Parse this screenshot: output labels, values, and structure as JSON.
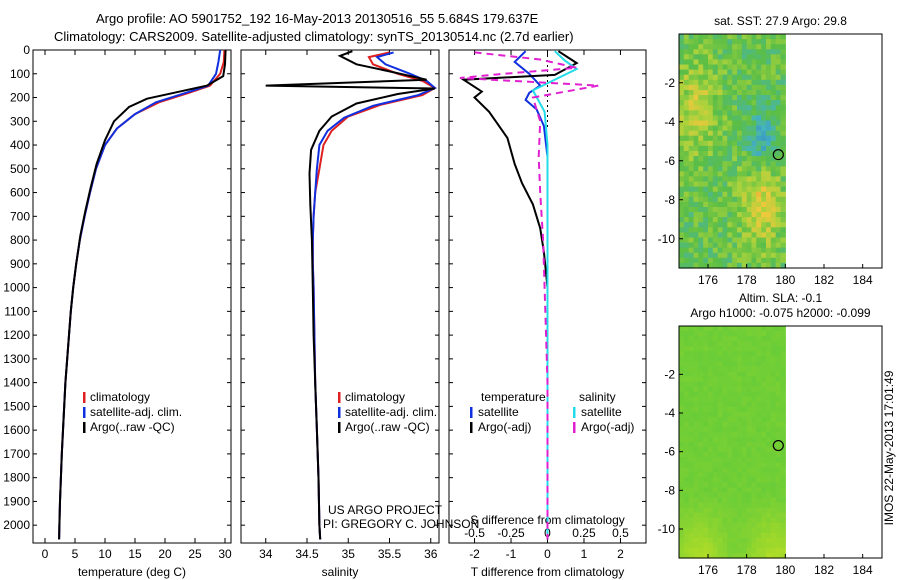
{
  "header": {
    "line1": "Argo profile: AO 5901752_192 16-May-2013 20130516_55 5.684S 179.637E",
    "line2": "Climatology: CARS2009. Satellite-adjusted climatology: synTS_20130514.nc (2.7d earlier)"
  },
  "credits": {
    "project": "US ARGO PROJECT",
    "pi": "PI: GREGORY C. JOHNSON"
  },
  "side_label": "IMOS 22-May-2013 17:01:49",
  "colors": {
    "climatology": "#e02020",
    "satellite": "#1030e0",
    "argo": "#000000",
    "sal_sat": "#22dde8",
    "sal_argo": "#e020d0"
  },
  "chart_data": [
    {
      "type": "line",
      "xlabel": "temperature (deg C)",
      "xlim": [
        -2,
        31
      ],
      "xticks": [
        0,
        5,
        10,
        15,
        20,
        25,
        30
      ],
      "ylim": [
        2075,
        0
      ],
      "yticks": [
        0,
        100,
        200,
        300,
        400,
        500,
        600,
        700,
        800,
        900,
        1000,
        1100,
        1200,
        1300,
        1400,
        1500,
        1600,
        1700,
        1800,
        1900,
        2000
      ],
      "legend": [
        "climatology",
        "satellite-adj. clim.",
        "Argo(..raw -QC)"
      ],
      "series": [
        {
          "name": "climatology",
          "color": "#e02020",
          "points": [
            [
              29.9,
              0
            ],
            [
              29.8,
              50
            ],
            [
              29.2,
              100
            ],
            [
              27.5,
              150
            ],
            [
              24,
              180
            ],
            [
              19,
              220
            ],
            [
              15,
              270
            ],
            [
              12,
              330
            ],
            [
              10,
              400
            ],
            [
              8.5,
              500
            ],
            [
              7.5,
              600
            ],
            [
              6.6,
              700
            ],
            [
              5.8,
              800
            ],
            [
              5.2,
              900
            ],
            [
              4.7,
              1000
            ],
            [
              4.3,
              1100
            ],
            [
              4,
              1200
            ],
            [
              3.7,
              1300
            ],
            [
              3.4,
              1400
            ],
            [
              3.2,
              1500
            ],
            [
              3,
              1600
            ],
            [
              2.8,
              1700
            ],
            [
              2.65,
              1800
            ],
            [
              2.5,
              1900
            ],
            [
              2.4,
              2000
            ],
            [
              2.35,
              2060
            ]
          ]
        },
        {
          "name": "satellite-adj. clim.",
          "color": "#1030e0",
          "points": [
            [
              29.2,
              0
            ],
            [
              28.9,
              50
            ],
            [
              28.5,
              100
            ],
            [
              27.2,
              150
            ],
            [
              23.5,
              180
            ],
            [
              18.5,
              220
            ],
            [
              15,
              270
            ],
            [
              12,
              330
            ],
            [
              10,
              400
            ],
            [
              8.5,
              500
            ],
            [
              7.5,
              600
            ],
            [
              6.6,
              700
            ],
            [
              5.8,
              800
            ],
            [
              5.2,
              900
            ],
            [
              4.7,
              1000
            ],
            [
              4.3,
              1100
            ],
            [
              4,
              1200
            ],
            [
              3.7,
              1300
            ],
            [
              3.4,
              1400
            ],
            [
              3.2,
              1500
            ],
            [
              3,
              1600
            ],
            [
              2.8,
              1700
            ],
            [
              2.65,
              1800
            ],
            [
              2.5,
              1900
            ],
            [
              2.4,
              2000
            ],
            [
              2.35,
              2060
            ]
          ]
        },
        {
          "name": "Argo(..raw -QC)",
          "color": "#000000",
          "points": [
            [
              30.1,
              0
            ],
            [
              30,
              60
            ],
            [
              29.7,
              110
            ],
            [
              27,
              150
            ],
            [
              21.5,
              180
            ],
            [
              17,
              205
            ],
            [
              14,
              240
            ],
            [
              11.5,
              300
            ],
            [
              10,
              380
            ],
            [
              8.6,
              480
            ],
            [
              7.6,
              580
            ],
            [
              6.7,
              680
            ],
            [
              5.9,
              780
            ],
            [
              5.2,
              900
            ],
            [
              4.7,
              1000
            ],
            [
              4.3,
              1100
            ],
            [
              4,
              1200
            ],
            [
              3.7,
              1300
            ],
            [
              3.4,
              1400
            ],
            [
              3.2,
              1500
            ],
            [
              3,
              1600
            ],
            [
              2.8,
              1700
            ],
            [
              2.65,
              1800
            ],
            [
              2.5,
              1900
            ],
            [
              2.4,
              2000
            ],
            [
              2.35,
              2060
            ]
          ]
        }
      ]
    },
    {
      "type": "line",
      "xlabel": "salinity",
      "xlim": [
        33.7,
        36.1
      ],
      "xticks": [
        34,
        34.5,
        35,
        35.5,
        36
      ],
      "ylim": [
        2075,
        0
      ],
      "legend": [
        "climatology",
        "satellite-adj. clim.",
        "Argo(..raw -QC)"
      ],
      "series": [
        {
          "name": "climatology",
          "color": "#e02020",
          "points": [
            [
              35.5,
              10
            ],
            [
              35.25,
              30
            ],
            [
              35.3,
              60
            ],
            [
              35.6,
              100
            ],
            [
              35.9,
              130
            ],
            [
              36.05,
              160
            ],
            [
              35.9,
              190
            ],
            [
              35.4,
              230
            ],
            [
              35,
              280
            ],
            [
              34.8,
              340
            ],
            [
              34.7,
              400
            ],
            [
              34.65,
              500
            ],
            [
              34.6,
              600
            ],
            [
              34.58,
              700
            ],
            [
              34.57,
              800
            ],
            [
              34.57,
              900
            ],
            [
              34.58,
              1000
            ],
            [
              34.59,
              1200
            ],
            [
              34.6,
              1400
            ],
            [
              34.62,
              1600
            ],
            [
              34.64,
              1800
            ],
            [
              34.65,
              2000
            ],
            [
              34.66,
              2060
            ]
          ]
        },
        {
          "name": "satellite-adj. clim.",
          "color": "#1030e0",
          "points": [
            [
              35.55,
              10
            ],
            [
              35.35,
              30
            ],
            [
              35.45,
              60
            ],
            [
              35.75,
              100
            ],
            [
              35.95,
              130
            ],
            [
              36.05,
              160
            ],
            [
              35.85,
              190
            ],
            [
              35.3,
              235
            ],
            [
              34.95,
              285
            ],
            [
              34.75,
              340
            ],
            [
              34.65,
              400
            ],
            [
              34.62,
              500
            ],
            [
              34.6,
              600
            ],
            [
              34.58,
              700
            ],
            [
              34.57,
              800
            ],
            [
              34.57,
              900
            ],
            [
              34.58,
              1000
            ],
            [
              34.59,
              1200
            ],
            [
              34.6,
              1400
            ],
            [
              34.62,
              1600
            ],
            [
              34.64,
              1800
            ],
            [
              34.65,
              2000
            ],
            [
              34.66,
              2060
            ]
          ]
        },
        {
          "name": "Argo(..raw -QC)",
          "color": "#000000",
          "points": [
            [
              35.05,
              5
            ],
            [
              34.9,
              25
            ],
            [
              35.1,
              60
            ],
            [
              35.5,
              90
            ],
            [
              35.95,
              125
            ],
            [
              34.0,
              150
            ],
            [
              36.05,
              162
            ],
            [
              35.6,
              185
            ],
            [
              35.1,
              225
            ],
            [
              34.8,
              280
            ],
            [
              34.65,
              340
            ],
            [
              34.55,
              420
            ],
            [
              34.53,
              520
            ],
            [
              34.54,
              650
            ],
            [
              34.56,
              800
            ],
            [
              34.57,
              1000
            ],
            [
              34.58,
              1200
            ],
            [
              34.6,
              1400
            ],
            [
              34.62,
              1600
            ],
            [
              34.64,
              1800
            ],
            [
              34.65,
              2000
            ],
            [
              34.66,
              2060
            ]
          ]
        }
      ]
    },
    {
      "type": "line",
      "xlabel": "T difference from climatology",
      "x2label": "S difference from climatology",
      "xlim": [
        -2.7,
        2.7
      ],
      "xticks": [
        -2,
        -1,
        0,
        1,
        2
      ],
      "x2lim": [
        -0.675,
        0.675
      ],
      "x2ticks": [
        -0.5,
        -0.25,
        0,
        0.25,
        0.5
      ],
      "ylim": [
        2075,
        0
      ],
      "legend": [
        "temperature",
        "satellite",
        "Argo(-adj)",
        "salinity",
        "satellite",
        "Argo(-adj)"
      ],
      "series": [
        {
          "name": "satellite",
          "axis": "T",
          "color": "#1030e0",
          "points": [
            [
              -0.6,
              5
            ],
            [
              -0.9,
              50
            ],
            [
              -0.5,
              100
            ],
            [
              -0.2,
              150
            ],
            [
              -0.5,
              180
            ],
            [
              -0.6,
              210
            ],
            [
              -0.3,
              250
            ],
            [
              -0.1,
              320
            ],
            [
              0,
              450
            ],
            [
              0,
              700
            ],
            [
              0,
              1000
            ],
            [
              0,
              2060
            ]
          ]
        },
        {
          "name": "Argo(-adj)",
          "axis": "T",
          "color": "#000000",
          "points": [
            [
              0.3,
              5
            ],
            [
              0.8,
              55
            ],
            [
              0.2,
              105
            ],
            [
              -2.3,
              125
            ],
            [
              -1.8,
              175
            ],
            [
              -2.0,
              200
            ],
            [
              -1.6,
              260
            ],
            [
              -1.1,
              370
            ],
            [
              -0.9,
              480
            ],
            [
              -0.7,
              560
            ],
            [
              -0.4,
              650
            ],
            [
              -0.2,
              750
            ],
            [
              -0.1,
              850
            ],
            [
              0,
              1000
            ],
            [
              0,
              1400
            ],
            [
              0,
              2060
            ]
          ]
        },
        {
          "name": "satellite",
          "axis": "S",
          "color": "#22dde8",
          "points": [
            [
              0.05,
              5
            ],
            [
              0.12,
              45
            ],
            [
              0.2,
              80
            ],
            [
              0.1,
              110
            ],
            [
              -0.1,
              170
            ],
            [
              -0.02,
              260
            ],
            [
              0,
              400
            ],
            [
              0,
              800
            ],
            [
              0,
              2060
            ]
          ]
        },
        {
          "name": "Argo(-adj)",
          "axis": "S",
          "color": "#e020d0",
          "dashed": true,
          "points": [
            [
              -0.5,
              10
            ],
            [
              -0.05,
              40
            ],
            [
              0.2,
              75
            ],
            [
              -0.3,
              100
            ],
            [
              -0.6,
              118
            ],
            [
              0.35,
              150
            ],
            [
              -0.1,
              200
            ],
            [
              -0.05,
              300
            ],
            [
              -0.06,
              450
            ],
            [
              -0.05,
              600
            ],
            [
              -0.03,
              800
            ],
            [
              -0.02,
              1000
            ],
            [
              0,
              1400
            ],
            [
              0,
              2060
            ]
          ]
        }
      ]
    },
    {
      "type": "heatmap",
      "title": "sat. SST: 27.9 Argo: 29.8",
      "xlim": [
        174.5,
        185
      ],
      "xticks": [
        176,
        178,
        180,
        182,
        184
      ],
      "ylim": [
        -11.5,
        0.5
      ],
      "yticks": [
        -10,
        -8,
        -6,
        -4,
        -2
      ],
      "argo_position": [
        179.637,
        -5.684
      ]
    },
    {
      "type": "heatmap",
      "title": "Altim. SLA: -0.1",
      "subtitle": "Argo h1000: -0.075 h2000: -0.099",
      "xlim": [
        174.5,
        185
      ],
      "xticks": [
        176,
        178,
        180,
        182,
        184
      ],
      "ylim": [
        -11.5,
        0.5
      ],
      "yticks": [
        -10,
        -8,
        -6,
        -4,
        -2
      ],
      "argo_position": [
        179.637,
        -5.684
      ]
    }
  ]
}
